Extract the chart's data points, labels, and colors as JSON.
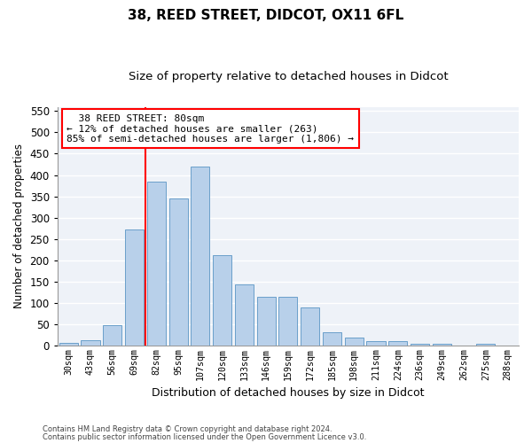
{
  "title1": "38, REED STREET, DIDCOT, OX11 6FL",
  "title2": "Size of property relative to detached houses in Didcot",
  "xlabel": "Distribution of detached houses by size in Didcot",
  "ylabel": "Number of detached properties",
  "footer1": "Contains HM Land Registry data © Crown copyright and database right 2024.",
  "footer2": "Contains public sector information licensed under the Open Government Licence v3.0.",
  "categories": [
    "30sqm",
    "43sqm",
    "56sqm",
    "69sqm",
    "82sqm",
    "95sqm",
    "107sqm",
    "120sqm",
    "133sqm",
    "146sqm",
    "159sqm",
    "172sqm",
    "185sqm",
    "198sqm",
    "211sqm",
    "224sqm",
    "236sqm",
    "249sqm",
    "262sqm",
    "275sqm",
    "288sqm"
  ],
  "values": [
    5,
    12,
    48,
    272,
    385,
    345,
    420,
    212,
    143,
    115,
    115,
    90,
    30,
    18,
    10,
    10,
    3,
    3,
    0,
    3,
    0
  ],
  "bar_color": "#b8d0ea",
  "bar_edge_color": "#6a9fca",
  "vline_bar_index": 4,
  "annotation_text_line1": "  38 REED STREET: 80sqm",
  "annotation_text_line2": "← 12% of detached houses are smaller (263)",
  "annotation_text_line3": "85% of semi-detached houses are larger (1,806) →",
  "annotation_box_color": "white",
  "annotation_box_edge": "red",
  "vline_color": "red",
  "ylim": [
    0,
    560
  ],
  "yticks": [
    0,
    50,
    100,
    150,
    200,
    250,
    300,
    350,
    400,
    450,
    500,
    550
  ],
  "background_color": "#eef2f8",
  "grid_color": "white"
}
